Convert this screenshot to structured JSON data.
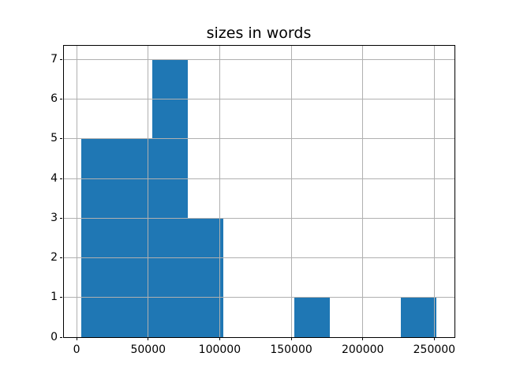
{
  "figure": {
    "background": "#ffffff"
  },
  "chart_data": {
    "type": "histogram",
    "title": "sizes in words",
    "xlabel": "",
    "ylabel": "",
    "bin_edges": [
      3000,
      27870,
      52740,
      77610,
      102480,
      127350,
      152220,
      177090,
      201960,
      226830,
      251700
    ],
    "counts": [
      5,
      5,
      7,
      3,
      0,
      0,
      1,
      0,
      0,
      1
    ],
    "xticks": [
      0,
      50000,
      100000,
      150000,
      200000,
      250000
    ],
    "xtick_labels": [
      "0",
      "50000",
      "100000",
      "150000",
      "200000",
      "250000"
    ],
    "yticks": [
      0,
      1,
      2,
      3,
      4,
      5,
      6,
      7
    ],
    "ytick_labels": [
      "0",
      "1",
      "2",
      "3",
      "4",
      "5",
      "6",
      "7"
    ],
    "xlim": [
      -9435,
      264135
    ],
    "ylim": [
      0,
      7.35
    ],
    "grid": true,
    "legend_position": "none",
    "bar_color": "#1f77b4",
    "grid_color": "#b0b0b0",
    "spine_color": "#000000",
    "text_color": "#000000"
  }
}
